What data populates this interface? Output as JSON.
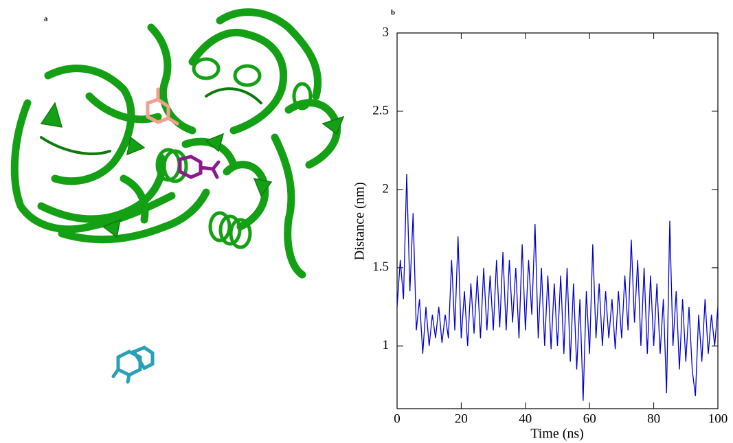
{
  "panel_a": {
    "label": "a"
  },
  "chart_data": {
    "type": "line",
    "panel_label": "b",
    "x_label": "Time (ns)",
    "y_label": "Distance (nm)",
    "x": [
      0,
      1,
      2,
      3,
      4,
      5,
      6,
      7,
      8,
      9,
      10,
      11,
      12,
      13,
      14,
      15,
      16,
      17,
      18,
      19,
      20,
      21,
      22,
      23,
      24,
      25,
      26,
      27,
      28,
      29,
      30,
      31,
      32,
      33,
      34,
      35,
      36,
      37,
      38,
      39,
      40,
      41,
      42,
      43,
      44,
      45,
      46,
      47,
      48,
      49,
      50,
      51,
      52,
      53,
      54,
      55,
      56,
      57,
      58,
      59,
      60,
      61,
      62,
      63,
      64,
      65,
      66,
      67,
      68,
      69,
      70,
      71,
      72,
      73,
      74,
      75,
      76,
      77,
      78,
      79,
      80,
      81,
      82,
      83,
      84,
      85,
      86,
      87,
      88,
      89,
      90,
      91,
      92,
      93,
      94,
      95,
      96,
      97,
      98,
      99,
      100
    ],
    "series": [
      {
        "color": "#0000cc",
        "values": [
          1.25,
          1.55,
          1.3,
          2.1,
          1.35,
          1.85,
          1.1,
          1.3,
          0.95,
          1.25,
          1.0,
          1.2,
          1.05,
          1.25,
          1.02,
          1.2,
          1.05,
          1.55,
          1.1,
          1.7,
          1.05,
          1.35,
          1.0,
          1.4,
          1.08,
          1.45,
          1.05,
          1.5,
          1.1,
          1.45,
          1.1,
          1.55,
          1.12,
          1.6,
          1.1,
          1.55,
          1.15,
          1.5,
          1.05,
          1.65,
          1.1,
          1.55,
          1.2,
          1.78,
          1.05,
          1.5,
          1.0,
          1.45,
          0.98,
          1.4,
          1.0,
          1.45,
          0.95,
          1.5,
          0.9,
          1.4,
          0.85,
          1.3,
          0.65,
          1.35,
          0.95,
          1.65,
          1.05,
          1.4,
          1.0,
          1.35,
          1.05,
          1.3,
          0.98,
          1.35,
          1.05,
          1.45,
          1.1,
          1.68,
          1.15,
          1.55,
          1.0,
          1.5,
          0.95,
          1.45,
          1.0,
          1.4,
          0.95,
          1.3,
          0.7,
          1.8,
          1.0,
          1.35,
          0.85,
          1.3,
          0.9,
          1.25,
          0.85,
          0.68,
          1.2,
          0.9,
          1.3,
          0.95,
          1.2,
          1.0,
          1.25
        ]
      }
    ],
    "xlim": [
      0,
      100
    ],
    "xticks": [
      0,
      20,
      40,
      60,
      80,
      100
    ],
    "ylim": [
      0.6,
      3
    ],
    "yticks": [
      1,
      1.5,
      2,
      2.5,
      3
    ]
  }
}
